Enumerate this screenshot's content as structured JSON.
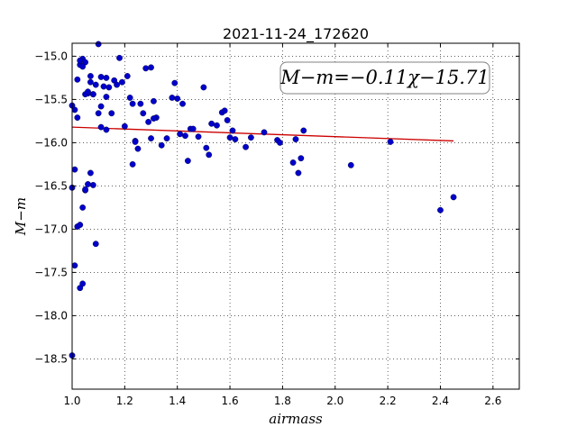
{
  "chart_data": {
    "type": "scatter",
    "title": "2021-11-24_172620",
    "xlabel": "airmass",
    "ylabel": "M−m",
    "xlim": [
      1.0,
      2.7
    ],
    "ylim": [
      -18.85,
      -14.85
    ],
    "x_ticks": [
      1.0,
      1.2,
      1.4,
      1.6,
      1.8,
      2.0,
      2.2,
      2.4,
      2.6
    ],
    "x_tick_labels": [
      "1.0",
      "1.2",
      "1.4",
      "1.6",
      "1.8",
      "2.0",
      "2.2",
      "2.4",
      "2.6"
    ],
    "y_ticks": [
      -15.0,
      -15.5,
      -16.0,
      -16.5,
      -17.0,
      -17.5,
      -18.0,
      -18.5
    ],
    "y_tick_labels": [
      "−15.0",
      "−15.5",
      "−16.0",
      "−16.5",
      "−17.0",
      "−17.5",
      "−18.0",
      "−18.5"
    ],
    "grid": true,
    "annotation": "M−m=−0.11χ−15.71",
    "points": {
      "color": "#0000cc",
      "x": [
        1.0,
        1.01,
        1.02,
        1.03,
        1.04,
        1.05,
        1.04,
        1.03,
        1.05,
        1.07,
        1.06,
        1.07,
        1.08,
        1.1,
        1.11,
        1.13,
        1.12,
        1.14,
        1.13,
        1.11,
        1.09,
        1.1,
        1.08,
        1.07,
        1.06,
        1.05,
        1.04,
        1.03,
        1.01,
        1.0,
        1.02,
        1.01,
        1.0,
        1.02,
        1.03,
        1.04,
        1.05,
        1.06,
        1.08,
        1.09,
        1.11,
        1.13,
        1.15,
        1.16,
        1.17,
        1.18,
        1.19,
        1.2,
        1.21,
        1.22,
        1.23,
        1.24,
        1.25,
        1.26,
        1.27,
        1.28,
        1.29,
        1.3,
        1.31,
        1.32,
        1.34,
        1.36,
        1.38,
        1.39,
        1.4,
        1.41,
        1.42,
        1.43,
        1.44,
        1.45,
        1.46,
        1.48,
        1.5,
        1.51,
        1.52,
        1.53,
        1.55,
        1.57,
        1.58,
        1.59,
        1.6,
        1.61,
        1.62,
        1.66,
        1.68,
        1.73,
        1.78,
        1.79,
        1.84,
        1.85,
        1.87,
        1.86,
        1.88,
        2.06,
        2.21,
        2.4,
        2.45,
        1.23,
        1.24,
        1.3,
        1.31
      ],
      "y": [
        -18.46,
        -17.42,
        -16.97,
        -16.95,
        -16.75,
        -16.55,
        -15.03,
        -15.1,
        -15.07,
        -15.23,
        -15.43,
        -15.3,
        -15.44,
        -14.86,
        -15.24,
        -15.25,
        -15.35,
        -15.36,
        -15.47,
        -15.58,
        -15.33,
        -15.66,
        -16.49,
        -16.35,
        -16.48,
        -16.54,
        -17.63,
        -17.68,
        -16.31,
        -16.52,
        -15.27,
        -15.62,
        -15.57,
        -15.71,
        -15.05,
        -15.12,
        -15.44,
        -15.41,
        -15.44,
        -17.17,
        -15.82,
        -15.85,
        -15.66,
        -15.28,
        -15.33,
        -15.02,
        -15.3,
        -15.81,
        -15.23,
        -15.48,
        -15.55,
        -15.98,
        -16.07,
        -15.55,
        -15.66,
        -15.14,
        -15.76,
        -15.13,
        -15.52,
        -15.71,
        -16.03,
        -15.95,
        -15.48,
        -15.31,
        -15.49,
        -15.9,
        -15.55,
        -15.92,
        -16.21,
        -15.84,
        -15.84,
        -15.93,
        -15.36,
        -16.06,
        -16.14,
        -15.78,
        -15.8,
        -15.65,
        -15.63,
        -15.74,
        -15.94,
        -15.86,
        -15.96,
        -16.05,
        -15.94,
        -15.88,
        -15.97,
        -16.0,
        -16.23,
        -15.96,
        -16.18,
        -16.35,
        -15.86,
        -16.26,
        -15.99,
        -16.78,
        -16.63,
        -16.25,
        -15.99,
        -15.95,
        -15.72
      ],
      "note": ""
    },
    "fit_line": {
      "color": "#cc0000",
      "slope": -0.11,
      "intercept": -15.71,
      "x_range": [
        1.0,
        2.45
      ]
    }
  }
}
